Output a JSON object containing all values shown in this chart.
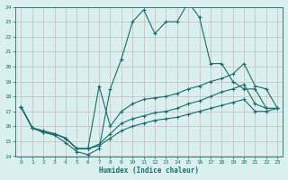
{
  "xlabel": "Humidex (Indice chaleur)",
  "xlim": [
    -0.5,
    23.5
  ],
  "ylim": [
    14,
    24
  ],
  "xticks": [
    0,
    1,
    2,
    3,
    4,
    5,
    6,
    7,
    8,
    9,
    10,
    11,
    12,
    13,
    14,
    15,
    16,
    17,
    18,
    19,
    20,
    21,
    22,
    23
  ],
  "yticks": [
    14,
    15,
    16,
    17,
    18,
    19,
    20,
    21,
    22,
    23,
    24
  ],
  "bg_color": "#daf0ee",
  "grid_color": "#c8b8c0",
  "line_color": "#1a6b6b",
  "line1_x": [
    0,
    1,
    2,
    3,
    4,
    5,
    6,
    7,
    8,
    9,
    10,
    11,
    12,
    13,
    14,
    15,
    16,
    17,
    18,
    19,
    20,
    21,
    22,
    23
  ],
  "line1_y": [
    17.3,
    15.9,
    15.6,
    15.4,
    14.9,
    14.3,
    14.1,
    14.5,
    18.5,
    20.5,
    23.0,
    23.8,
    22.2,
    23.0,
    23.0,
    24.3,
    23.3,
    20.2,
    20.2,
    19.0,
    18.5,
    18.5,
    17.2,
    17.2
  ],
  "line2_x": [
    0,
    1,
    2,
    3,
    4,
    5,
    6,
    7,
    8,
    9,
    10,
    11,
    12,
    13,
    14,
    15,
    16,
    17,
    18,
    19,
    20,
    21,
    22,
    23
  ],
  "line2_y": [
    17.3,
    15.9,
    15.7,
    15.5,
    15.2,
    14.5,
    14.5,
    18.7,
    16.0,
    17.0,
    17.5,
    17.8,
    17.9,
    18.0,
    18.2,
    18.5,
    18.7,
    19.0,
    19.2,
    19.5,
    20.2,
    18.7,
    18.5,
    17.2
  ],
  "line3_x": [
    0,
    1,
    2,
    3,
    4,
    5,
    6,
    7,
    8,
    9,
    10,
    11,
    12,
    13,
    14,
    15,
    16,
    17,
    18,
    19,
    20,
    21,
    22,
    23
  ],
  "line3_y": [
    17.3,
    15.9,
    15.6,
    15.5,
    15.2,
    14.5,
    14.5,
    14.8,
    15.5,
    16.2,
    16.5,
    16.7,
    16.9,
    17.0,
    17.2,
    17.5,
    17.7,
    18.0,
    18.3,
    18.5,
    18.8,
    17.5,
    17.2,
    17.2
  ],
  "line4_x": [
    0,
    1,
    2,
    3,
    4,
    5,
    6,
    7,
    8,
    9,
    10,
    11,
    12,
    13,
    14,
    15,
    16,
    17,
    18,
    19,
    20,
    21,
    22,
    23
  ],
  "line4_y": [
    17.3,
    15.9,
    15.6,
    15.5,
    15.2,
    14.5,
    14.5,
    14.7,
    15.2,
    15.7,
    16.0,
    16.2,
    16.4,
    16.5,
    16.6,
    16.8,
    17.0,
    17.2,
    17.4,
    17.6,
    17.8,
    17.0,
    17.0,
    17.2
  ]
}
